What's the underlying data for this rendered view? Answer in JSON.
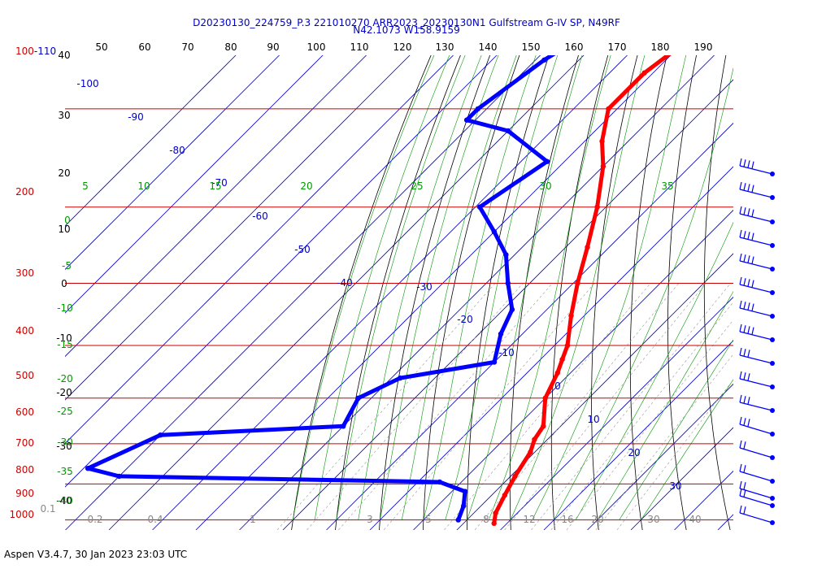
{
  "title_line1": "D20230130_224759_P.3 221010270 ARR2023_20230130N1 Gulfstream G-IV SP, N49RF",
  "title_line2": "N42.1073 W158.9159",
  "footer": "Aspen V3.4.7, 30 Jan 2023  23:03 UTC",
  "colors": {
    "temperature": "#ff0000",
    "dewpoint": "#0000ff",
    "isobar": "#cc0000",
    "dry_adiabat": "#000000",
    "isotherm": "#0000cc",
    "moist_adiabat": "#009900"
  },
  "chart_data": {
    "type": "line",
    "title": "D20230130_224759_P.3 221010270 ARR2023_20230130N1 Gulfstream G-IV SP, N49RF",
    "subtitle": "N42.1073 W158.9159",
    "pressure_levels": [
      "100-110",
      "200",
      "300",
      "400",
      "500",
      "600",
      "700",
      "800",
      "900",
      "1000"
    ],
    "top_scale": [
      "50",
      "60",
      "70",
      "80",
      "90",
      "100",
      "110",
      "120",
      "130",
      "140",
      "150",
      "160",
      "170",
      "180",
      "190"
    ],
    "left_scale": [
      "40",
      "30",
      "20",
      "10",
      "0",
      "-10",
      "-20",
      "-30",
      "-40"
    ],
    "isotherm_labels": [
      "-100",
      "-90",
      "-80",
      "-70",
      "-60",
      "-50",
      "-40",
      "-30",
      "-20",
      "-10",
      "0",
      "10",
      "20",
      "30"
    ],
    "moist_adiabat_labels": [
      "5",
      "10",
      "15",
      "20",
      "25",
      "30",
      "35"
    ],
    "green_left_labels": [
      "0",
      "-5",
      "-10",
      "-15",
      "-20",
      "-25",
      "-30",
      "-35",
      "-40"
    ],
    "mixing_ratio_labels": [
      "0.1",
      "0.2",
      "0.4",
      "1",
      "3",
      "5",
      "8",
      "12",
      "16",
      "20",
      "30",
      "40"
    ],
    "series": [
      {
        "name": "temperature",
        "points": [
          {
            "p": 185,
            "t": -57
          },
          {
            "p": 200,
            "t": -58
          },
          {
            "p": 230,
            "t": -58
          },
          {
            "p": 250,
            "t": -60
          },
          {
            "p": 270,
            "t": -62
          },
          {
            "p": 300,
            "t": -62
          },
          {
            "p": 330,
            "t": -56
          },
          {
            "p": 355,
            "t": -50
          },
          {
            "p": 400,
            "t": -42
          },
          {
            "p": 450,
            "t": -35
          },
          {
            "p": 500,
            "t": -29
          },
          {
            "p": 550,
            "t": -23
          },
          {
            "p": 600,
            "t": -17
          },
          {
            "p": 625,
            "t": -15
          },
          {
            "p": 650,
            "t": -13
          },
          {
            "p": 700,
            "t": -10
          },
          {
            "p": 760,
            "t": -4
          },
          {
            "p": 790,
            "t": -3
          },
          {
            "p": 820,
            "t": -1
          },
          {
            "p": 880,
            "t": 1
          },
          {
            "p": 930,
            "t": 3
          },
          {
            "p": 980,
            "t": 5
          },
          {
            "p": 1010,
            "t": 7
          }
        ]
      },
      {
        "name": "dewpoint",
        "points": [
          {
            "p": 200,
            "t": -76
          },
          {
            "p": 230,
            "t": -82
          },
          {
            "p": 260,
            "t": -88
          },
          {
            "p": 300,
            "t": -92
          },
          {
            "p": 310,
            "t": -92
          },
          {
            "p": 320,
            "t": -80
          },
          {
            "p": 350,
            "t": -64
          },
          {
            "p": 400,
            "t": -69
          },
          {
            "p": 430,
            "t": -60
          },
          {
            "p": 460,
            "t": -52
          },
          {
            "p": 500,
            "t": -45
          },
          {
            "p": 540,
            "t": -38
          },
          {
            "p": 580,
            "t": -35
          },
          {
            "p": 630,
            "t": -30
          },
          {
            "p": 660,
            "t": -48
          },
          {
            "p": 700,
            "t": -53
          },
          {
            "p": 760,
            "t": -50
          },
          {
            "p": 780,
            "t": -90
          },
          {
            "p": 860,
            "t": -99
          },
          {
            "p": 880,
            "t": -90
          },
          {
            "p": 895,
            "t": -15
          },
          {
            "p": 920,
            "t": -7
          },
          {
            "p": 960,
            "t": -4
          },
          {
            "p": 1000,
            "t": -2
          }
        ]
      }
    ],
    "wind_barb_count": 17
  }
}
